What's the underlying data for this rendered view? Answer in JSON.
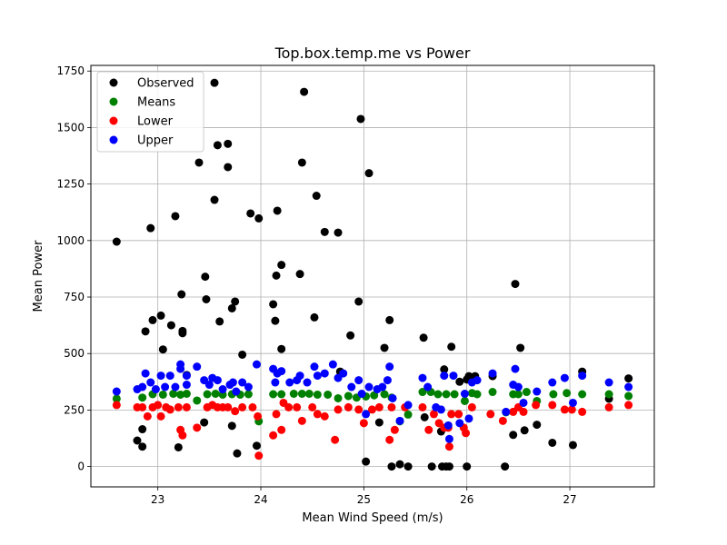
{
  "chart_data": {
    "type": "scatter",
    "title": "Top.box.temp.me vs Power",
    "xlabel": "Mean Wind Speed (m/s)",
    "ylabel": "Mean Power",
    "xlim": [
      22.35,
      27.82
    ],
    "ylim": [
      -90,
      1775
    ],
    "xticks": [
      23,
      24,
      25,
      26,
      27
    ],
    "yticks": [
      0,
      250,
      500,
      750,
      1000,
      1250,
      1500,
      1750
    ],
    "grid": true,
    "legend": "top-left",
    "series": [
      {
        "name": "Observed",
        "color": "#000000",
        "points": [
          [
            22.6,
            995
          ],
          [
            22.8,
            115
          ],
          [
            22.85,
            88
          ],
          [
            22.85,
            165
          ],
          [
            22.88,
            598
          ],
          [
            22.93,
            1055
          ],
          [
            22.95,
            648
          ],
          [
            23.03,
            668
          ],
          [
            23.05,
            518
          ],
          [
            23.13,
            625
          ],
          [
            23.17,
            1108
          ],
          [
            23.2,
            85
          ],
          [
            23.23,
            762
          ],
          [
            23.24,
            600
          ],
          [
            23.24,
            590
          ],
          [
            23.28,
            405
          ],
          [
            23.4,
            1345
          ],
          [
            23.45,
            195
          ],
          [
            23.46,
            840
          ],
          [
            23.47,
            740
          ],
          [
            23.55,
            1698
          ],
          [
            23.55,
            1180
          ],
          [
            23.58,
            1422
          ],
          [
            23.6,
            642
          ],
          [
            23.68,
            1428
          ],
          [
            23.68,
            1325
          ],
          [
            23.72,
            700
          ],
          [
            23.72,
            180
          ],
          [
            23.75,
            730
          ],
          [
            23.77,
            58
          ],
          [
            23.82,
            495
          ],
          [
            23.9,
            1120
          ],
          [
            23.96,
            92
          ],
          [
            23.98,
            1098
          ],
          [
            24.12,
            718
          ],
          [
            24.14,
            645
          ],
          [
            24.15,
            845
          ],
          [
            24.16,
            1132
          ],
          [
            24.2,
            520
          ],
          [
            24.2,
            892
          ],
          [
            24.38,
            852
          ],
          [
            24.4,
            1345
          ],
          [
            24.42,
            1658
          ],
          [
            24.52,
            660
          ],
          [
            24.54,
            1198
          ],
          [
            24.62,
            1038
          ],
          [
            24.75,
            1035
          ],
          [
            24.77,
            420
          ],
          [
            24.87,
            580
          ],
          [
            24.95,
            730
          ],
          [
            24.97,
            1538
          ],
          [
            25.02,
            22
          ],
          [
            25.05,
            1298
          ],
          [
            25.15,
            195
          ],
          [
            25.2,
            525
          ],
          [
            25.25,
            648
          ],
          [
            25.27,
            0
          ],
          [
            25.35,
            10
          ],
          [
            25.43,
            0
          ],
          [
            25.58,
            570
          ],
          [
            25.59,
            218
          ],
          [
            25.66,
            0
          ],
          [
            25.75,
            155
          ],
          [
            25.76,
            0
          ],
          [
            25.78,
            430
          ],
          [
            25.8,
            0
          ],
          [
            25.83,
            0
          ],
          [
            25.85,
            530
          ],
          [
            25.93,
            375
          ],
          [
            26.0,
            0
          ],
          [
            26.0,
            385
          ],
          [
            26.02,
            400
          ],
          [
            26.08,
            400
          ],
          [
            26.25,
            400
          ],
          [
            26.37,
            0
          ],
          [
            26.45,
            140
          ],
          [
            26.47,
            808
          ],
          [
            26.52,
            525
          ],
          [
            26.56,
            160
          ],
          [
            26.68,
            185
          ],
          [
            26.83,
            105
          ],
          [
            27.03,
            95
          ],
          [
            27.12,
            420
          ],
          [
            27.38,
            300
          ],
          [
            27.57,
            390
          ]
        ]
      },
      {
        "name": "Means",
        "color": "#008000",
        "points": [
          [
            22.6,
            300
          ],
          [
            22.85,
            305
          ],
          [
            22.95,
            320
          ],
          [
            23.05,
            318
          ],
          [
            23.15,
            322
          ],
          [
            23.22,
            318
          ],
          [
            23.28,
            322
          ],
          [
            23.38,
            292
          ],
          [
            23.48,
            320
          ],
          [
            23.56,
            322
          ],
          [
            23.63,
            318
          ],
          [
            23.72,
            320
          ],
          [
            23.8,
            318
          ],
          [
            23.88,
            320
          ],
          [
            23.98,
            200
          ],
          [
            24.12,
            320
          ],
          [
            24.2,
            320
          ],
          [
            24.32,
            322
          ],
          [
            24.4,
            322
          ],
          [
            24.47,
            322
          ],
          [
            24.55,
            318
          ],
          [
            24.65,
            318
          ],
          [
            24.75,
            302
          ],
          [
            24.85,
            312
          ],
          [
            24.93,
            305
          ],
          [
            25.02,
            310
          ],
          [
            25.1,
            315
          ],
          [
            25.2,
            320
          ],
          [
            25.27,
            305
          ],
          [
            25.35,
            200
          ],
          [
            25.43,
            230
          ],
          [
            25.57,
            330
          ],
          [
            25.65,
            330
          ],
          [
            25.72,
            320
          ],
          [
            25.8,
            320
          ],
          [
            25.88,
            320
          ],
          [
            25.98,
            290
          ],
          [
            26.05,
            325
          ],
          [
            26.1,
            320
          ],
          [
            26.25,
            330
          ],
          [
            26.38,
            240
          ],
          [
            26.45,
            320
          ],
          [
            26.5,
            320
          ],
          [
            26.58,
            330
          ],
          [
            26.68,
            290
          ],
          [
            26.84,
            320
          ],
          [
            26.97,
            325
          ],
          [
            27.12,
            320
          ],
          [
            27.38,
            320
          ],
          [
            27.57,
            312
          ]
        ]
      },
      {
        "name": "Lower",
        "color": "#ff0000",
        "points": [
          [
            22.6,
            272
          ],
          [
            22.8,
            262
          ],
          [
            22.85,
            262
          ],
          [
            22.9,
            222
          ],
          [
            22.95,
            262
          ],
          [
            23.0,
            272
          ],
          [
            23.03,
            222
          ],
          [
            23.08,
            262
          ],
          [
            23.12,
            252
          ],
          [
            23.2,
            262
          ],
          [
            23.22,
            162
          ],
          [
            23.24,
            138
          ],
          [
            23.28,
            262
          ],
          [
            23.38,
            172
          ],
          [
            23.48,
            262
          ],
          [
            23.53,
            272
          ],
          [
            23.58,
            262
          ],
          [
            23.63,
            262
          ],
          [
            23.68,
            262
          ],
          [
            23.75,
            245
          ],
          [
            23.82,
            262
          ],
          [
            23.92,
            262
          ],
          [
            23.97,
            222
          ],
          [
            23.98,
            48
          ],
          [
            24.12,
            138
          ],
          [
            24.15,
            232
          ],
          [
            24.2,
            162
          ],
          [
            24.22,
            282
          ],
          [
            24.27,
            262
          ],
          [
            24.35,
            262
          ],
          [
            24.4,
            202
          ],
          [
            24.5,
            262
          ],
          [
            24.55,
            232
          ],
          [
            24.62,
            222
          ],
          [
            24.72,
            118
          ],
          [
            24.75,
            252
          ],
          [
            24.85,
            262
          ],
          [
            24.95,
            252
          ],
          [
            25.0,
            192
          ],
          [
            25.08,
            252
          ],
          [
            25.15,
            262
          ],
          [
            25.25,
            118
          ],
          [
            25.27,
            262
          ],
          [
            25.3,
            162
          ],
          [
            25.4,
            262
          ],
          [
            25.57,
            262
          ],
          [
            25.63,
            162
          ],
          [
            25.68,
            232
          ],
          [
            25.73,
            192
          ],
          [
            25.78,
            172
          ],
          [
            25.82,
            172
          ],
          [
            25.83,
            88
          ],
          [
            25.85,
            232
          ],
          [
            25.92,
            232
          ],
          [
            25.97,
            172
          ],
          [
            25.99,
            148
          ],
          [
            26.05,
            262
          ],
          [
            26.23,
            232
          ],
          [
            26.35,
            202
          ],
          [
            26.45,
            242
          ],
          [
            26.5,
            262
          ],
          [
            26.55,
            242
          ],
          [
            26.67,
            272
          ],
          [
            26.83,
            272
          ],
          [
            26.95,
            252
          ],
          [
            27.02,
            252
          ],
          [
            27.12,
            242
          ],
          [
            27.38,
            262
          ],
          [
            27.57,
            272
          ]
        ]
      },
      {
        "name": "Upper",
        "color": "#0000ff",
        "points": [
          [
            22.6,
            332
          ],
          [
            22.8,
            342
          ],
          [
            22.85,
            352
          ],
          [
            22.88,
            412
          ],
          [
            22.93,
            372
          ],
          [
            22.98,
            342
          ],
          [
            23.03,
            402
          ],
          [
            23.07,
            352
          ],
          [
            23.12,
            402
          ],
          [
            23.17,
            352
          ],
          [
            23.22,
            432
          ],
          [
            23.22,
            452
          ],
          [
            23.28,
            402
          ],
          [
            23.28,
            362
          ],
          [
            23.38,
            442
          ],
          [
            23.45,
            382
          ],
          [
            23.5,
            362
          ],
          [
            23.53,
            392
          ],
          [
            23.58,
            382
          ],
          [
            23.63,
            342
          ],
          [
            23.7,
            362
          ],
          [
            23.73,
            372
          ],
          [
            23.76,
            332
          ],
          [
            23.82,
            372
          ],
          [
            23.88,
            352
          ],
          [
            23.96,
            452
          ],
          [
            24.12,
            432
          ],
          [
            24.14,
            372
          ],
          [
            24.16,
            412
          ],
          [
            24.2,
            422
          ],
          [
            24.28,
            372
          ],
          [
            24.35,
            382
          ],
          [
            24.38,
            402
          ],
          [
            24.45,
            372
          ],
          [
            24.52,
            442
          ],
          [
            24.55,
            402
          ],
          [
            24.62,
            412
          ],
          [
            24.7,
            452
          ],
          [
            24.75,
            392
          ],
          [
            24.8,
            412
          ],
          [
            24.88,
            352
          ],
          [
            24.95,
            382
          ],
          [
            24.98,
            322
          ],
          [
            25.02,
            232
          ],
          [
            25.05,
            352
          ],
          [
            25.13,
            342
          ],
          [
            25.18,
            352
          ],
          [
            25.23,
            382
          ],
          [
            25.25,
            442
          ],
          [
            25.28,
            302
          ],
          [
            25.35,
            202
          ],
          [
            25.43,
            272
          ],
          [
            25.57,
            392
          ],
          [
            25.62,
            352
          ],
          [
            25.7,
            262
          ],
          [
            25.75,
            252
          ],
          [
            25.78,
            402
          ],
          [
            25.82,
            182
          ],
          [
            25.83,
            122
          ],
          [
            25.87,
            402
          ],
          [
            25.93,
            192
          ],
          [
            25.98,
            322
          ],
          [
            26.02,
            212
          ],
          [
            26.05,
            372
          ],
          [
            26.1,
            382
          ],
          [
            26.25,
            412
          ],
          [
            26.38,
            242
          ],
          [
            26.45,
            362
          ],
          [
            26.47,
            432
          ],
          [
            26.5,
            352
          ],
          [
            26.55,
            282
          ],
          [
            26.68,
            332
          ],
          [
            26.83,
            372
          ],
          [
            26.95,
            392
          ],
          [
            27.03,
            282
          ],
          [
            27.12,
            402
          ],
          [
            27.38,
            372
          ],
          [
            27.57,
            352
          ]
        ]
      }
    ]
  }
}
